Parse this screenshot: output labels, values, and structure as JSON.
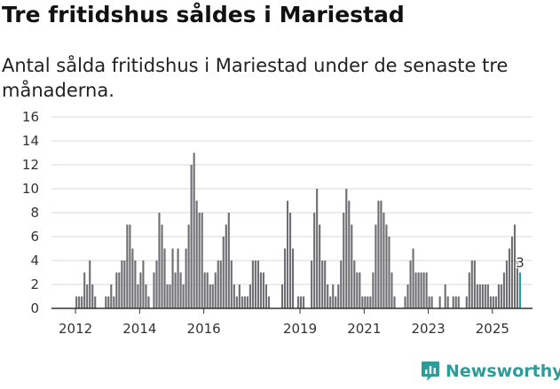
{
  "title": "Tre fritidshus såldes i Mariestad",
  "subtitle": "Antal sålda fritidshus i Mariestad under de senaste tre månaderna.",
  "brand": {
    "name": "Newsworthy",
    "color": "#2c9c97"
  },
  "colors": {
    "bar": "#6e6e73",
    "highlight": "#2c9c97",
    "grid": "#d9d9d9",
    "axis": "#333333"
  },
  "chart_data": {
    "type": "bar",
    "title": "Tre fritidshus såldes i Mariestad",
    "xlabel": "",
    "ylabel": "",
    "ylim": [
      0,
      16
    ],
    "yticks": [
      0,
      2,
      4,
      6,
      8,
      10,
      12,
      14,
      16
    ],
    "xticks": [
      "2012",
      "2014",
      "2016",
      "2019",
      "2021",
      "2023",
      "2025"
    ],
    "xtick_positions": [
      2012.0,
      2014.0,
      2016.0,
      2019.0,
      2021.0,
      2023.0,
      2025.0
    ],
    "x_start": 2011.25,
    "x_end": 2026.25,
    "bar_width_months": 1,
    "highlight_label": "3",
    "series": [
      {
        "name": "Antal sålda fritidshus",
        "monthly": [
          [
            2012.0,
            1
          ],
          [
            2012.083,
            1
          ],
          [
            2012.167,
            1
          ],
          [
            2012.25,
            3
          ],
          [
            2012.333,
            2
          ],
          [
            2012.417,
            4
          ],
          [
            2012.5,
            2
          ],
          [
            2012.583,
            1
          ],
          [
            2012.917,
            1
          ],
          [
            2013.0,
            1
          ],
          [
            2013.083,
            2
          ],
          [
            2013.167,
            1
          ],
          [
            2013.25,
            3
          ],
          [
            2013.333,
            3
          ],
          [
            2013.417,
            4
          ],
          [
            2013.5,
            4
          ],
          [
            2013.583,
            7
          ],
          [
            2013.667,
            7
          ],
          [
            2013.75,
            5
          ],
          [
            2013.833,
            4
          ],
          [
            2013.917,
            2
          ],
          [
            2014.0,
            3
          ],
          [
            2014.083,
            4
          ],
          [
            2014.167,
            2
          ],
          [
            2014.25,
            1
          ],
          [
            2014.417,
            3
          ],
          [
            2014.5,
            4
          ],
          [
            2014.583,
            8
          ],
          [
            2014.667,
            7
          ],
          [
            2014.75,
            5
          ],
          [
            2014.833,
            2
          ],
          [
            2014.917,
            2
          ],
          [
            2015.0,
            5
          ],
          [
            2015.083,
            3
          ],
          [
            2015.167,
            5
          ],
          [
            2015.25,
            3
          ],
          [
            2015.333,
            2
          ],
          [
            2015.417,
            5
          ],
          [
            2015.5,
            7
          ],
          [
            2015.583,
            12
          ],
          [
            2015.667,
            13
          ],
          [
            2015.75,
            9
          ],
          [
            2015.833,
            8
          ],
          [
            2015.917,
            8
          ],
          [
            2016.0,
            3
          ],
          [
            2016.083,
            3
          ],
          [
            2016.167,
            2
          ],
          [
            2016.25,
            2
          ],
          [
            2016.333,
            3
          ],
          [
            2016.417,
            4
          ],
          [
            2016.5,
            4
          ],
          [
            2016.583,
            6
          ],
          [
            2016.667,
            7
          ],
          [
            2016.75,
            8
          ],
          [
            2016.833,
            4
          ],
          [
            2016.917,
            2
          ],
          [
            2017.0,
            1
          ],
          [
            2017.083,
            2
          ],
          [
            2017.167,
            1
          ],
          [
            2017.25,
            1
          ],
          [
            2017.333,
            1
          ],
          [
            2017.417,
            2
          ],
          [
            2017.5,
            4
          ],
          [
            2017.583,
            4
          ],
          [
            2017.667,
            4
          ],
          [
            2017.75,
            3
          ],
          [
            2017.833,
            3
          ],
          [
            2017.917,
            2
          ],
          [
            2018.0,
            1
          ],
          [
            2018.417,
            2
          ],
          [
            2018.5,
            5
          ],
          [
            2018.583,
            9
          ],
          [
            2018.667,
            8
          ],
          [
            2018.75,
            5
          ],
          [
            2018.917,
            1
          ],
          [
            2019.0,
            1
          ],
          [
            2019.083,
            1
          ],
          [
            2019.333,
            4
          ],
          [
            2019.417,
            8
          ],
          [
            2019.5,
            10
          ],
          [
            2019.583,
            7
          ],
          [
            2019.667,
            4
          ],
          [
            2019.75,
            4
          ],
          [
            2019.833,
            2
          ],
          [
            2019.917,
            1
          ],
          [
            2020.0,
            2
          ],
          [
            2020.083,
            1
          ],
          [
            2020.167,
            2
          ],
          [
            2020.25,
            4
          ],
          [
            2020.333,
            8
          ],
          [
            2020.417,
            10
          ],
          [
            2020.5,
            9
          ],
          [
            2020.583,
            7
          ],
          [
            2020.667,
            4
          ],
          [
            2020.75,
            3
          ],
          [
            2020.833,
            3
          ],
          [
            2020.917,
            1
          ],
          [
            2021.0,
            1
          ],
          [
            2021.083,
            1
          ],
          [
            2021.167,
            1
          ],
          [
            2021.25,
            3
          ],
          [
            2021.333,
            7
          ],
          [
            2021.417,
            9
          ],
          [
            2021.5,
            9
          ],
          [
            2021.583,
            8
          ],
          [
            2021.667,
            7
          ],
          [
            2021.75,
            6
          ],
          [
            2021.833,
            3
          ],
          [
            2021.917,
            1
          ],
          [
            2022.25,
            1
          ],
          [
            2022.333,
            2
          ],
          [
            2022.417,
            4
          ],
          [
            2022.5,
            5
          ],
          [
            2022.583,
            3
          ],
          [
            2022.667,
            3
          ],
          [
            2022.75,
            3
          ],
          [
            2022.833,
            3
          ],
          [
            2022.917,
            3
          ],
          [
            2023.0,
            1
          ],
          [
            2023.083,
            1
          ],
          [
            2023.333,
            1
          ],
          [
            2023.5,
            2
          ],
          [
            2023.583,
            1
          ],
          [
            2023.75,
            1
          ],
          [
            2023.833,
            1
          ],
          [
            2023.917,
            1
          ],
          [
            2024.167,
            1
          ],
          [
            2024.25,
            3
          ],
          [
            2024.333,
            4
          ],
          [
            2024.417,
            4
          ],
          [
            2024.5,
            2
          ],
          [
            2024.583,
            2
          ],
          [
            2024.667,
            2
          ],
          [
            2024.75,
            2
          ],
          [
            2024.833,
            2
          ],
          [
            2024.917,
            1
          ],
          [
            2025.0,
            1
          ],
          [
            2025.083,
            1
          ],
          [
            2025.167,
            2
          ],
          [
            2025.25,
            2
          ],
          [
            2025.333,
            3
          ],
          [
            2025.417,
            4
          ],
          [
            2025.5,
            5
          ],
          [
            2025.583,
            6
          ],
          [
            2025.667,
            7
          ],
          [
            2025.75,
            4
          ],
          [
            2025.833,
            3
          ]
        ]
      }
    ]
  }
}
